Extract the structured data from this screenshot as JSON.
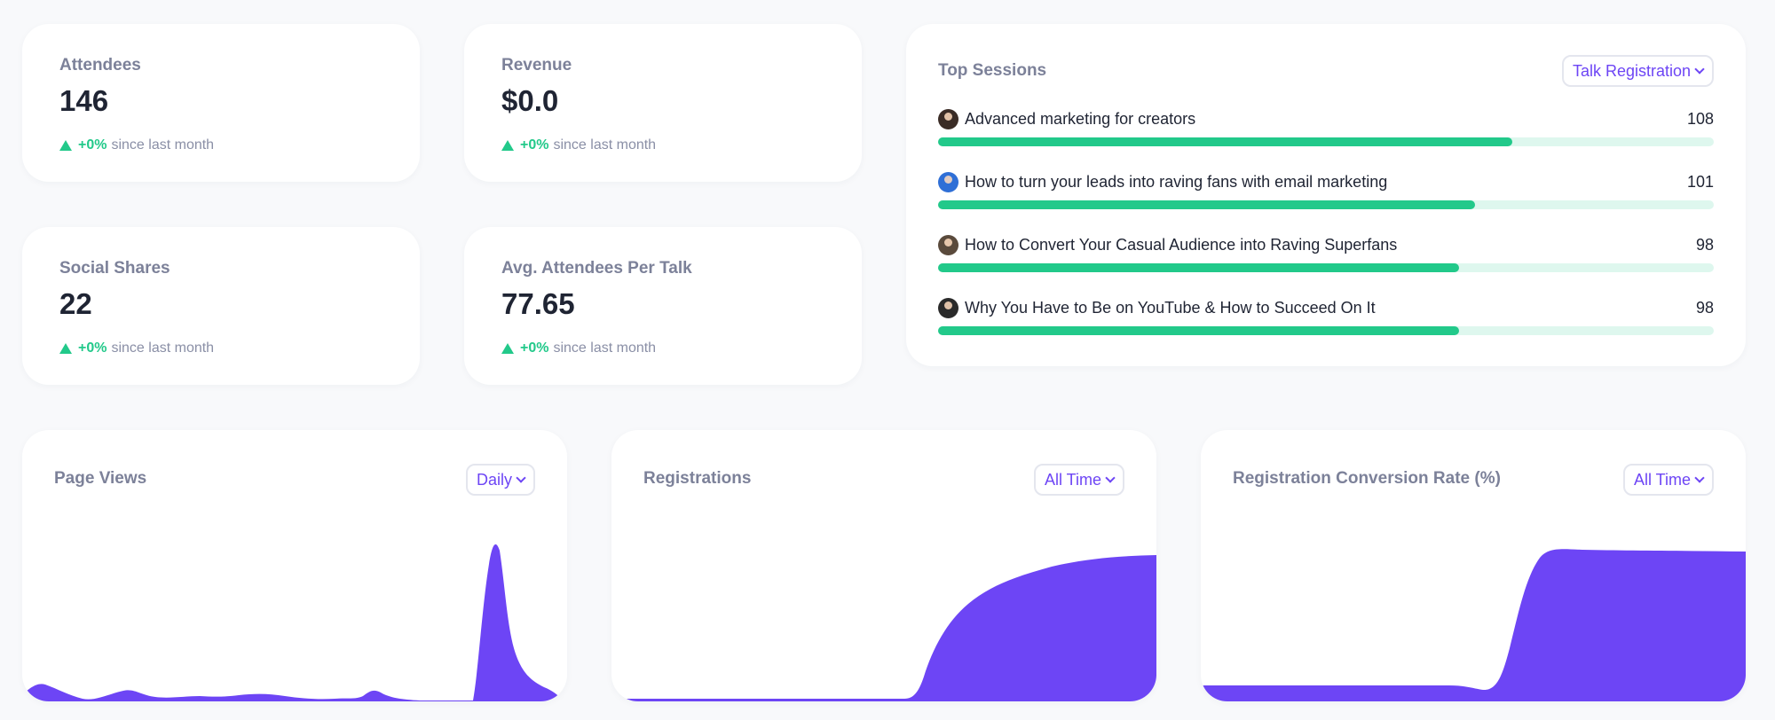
{
  "stats": [
    {
      "label": "Attendees",
      "value": "146",
      "change": "+0%",
      "since": "since last month"
    },
    {
      "label": "Revenue",
      "value": "$0.0",
      "change": "+0%",
      "since": "since last month"
    },
    {
      "label": "Social Shares",
      "value": "22",
      "change": "+0%",
      "since": "since last month"
    },
    {
      "label": "Avg. Attendees Per Talk",
      "value": "77.65",
      "change": "+0%",
      "since": "since last month"
    }
  ],
  "top_sessions": {
    "title": "Top Sessions",
    "filter": "Talk Registration",
    "max": 146,
    "items": [
      {
        "name": "Advanced marketing for creators",
        "count": 108,
        "avatar_color": "#3a2c26"
      },
      {
        "name": "How to turn your leads into raving fans with email marketing",
        "count": 101,
        "avatar_color": "#2f6fd6"
      },
      {
        "name": "How to Convert Your Casual Audience into Raving Superfans",
        "count": 98,
        "avatar_color": "#5a4a3c"
      },
      {
        "name": "Why You Have to Be on YouTube & How to Succeed On It",
        "count": 98,
        "avatar_color": "#2a2a2a"
      }
    ]
  },
  "page_views": {
    "title": "Page Views",
    "filter": "Daily"
  },
  "registrations": {
    "title": "Registrations",
    "filter": "All Time"
  },
  "conversion": {
    "title": "Registration Conversion Rate (%)",
    "filter": "All Time"
  },
  "colors": {
    "accent": "#6d45f5",
    "positive": "#22c98a",
    "bar_track": "#def7ee"
  },
  "icons": {
    "trend": "triangle-up-icon",
    "dropdown": "chevron-down-icon",
    "avatar": "speaker-avatar"
  }
}
